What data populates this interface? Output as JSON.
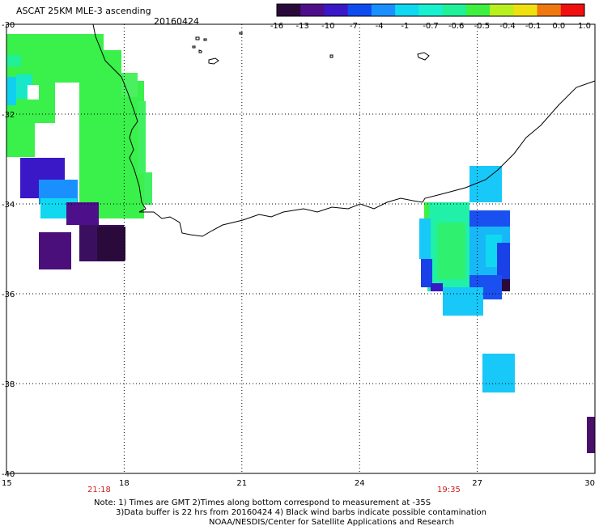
{
  "header": {
    "product": "ASCAT 25KM MLE-3 ascending",
    "date": "20160424"
  },
  "colorbar": {
    "tick_labels": [
      "-16",
      "-13",
      "-10",
      "-7",
      "-4",
      "-1",
      "-0.7",
      "-0.6",
      "-0.5",
      "-0.4",
      "-0.1",
      "0.0",
      "1.0"
    ],
    "colors": [
      "#2a0a3a",
      "#4d0f8a",
      "#3a18c8",
      "#0f4cf0",
      "#1a90ff",
      "#10d8f0",
      "#18f0d0",
      "#20f098",
      "#40f040",
      "#b8f020",
      "#f0e010",
      "#f07810",
      "#f01010"
    ]
  },
  "axes": {
    "y_labels": [
      "-30",
      "-32",
      "-34",
      "-36",
      "-38",
      "-40"
    ],
    "x_labels": [
      "15",
      "18",
      "21",
      "24",
      "27",
      "30"
    ],
    "lon_range": [
      15,
      30
    ],
    "lat_range": [
      -40,
      -30
    ]
  },
  "times": {
    "left": "21:18",
    "right": "19:35"
  },
  "footer": {
    "note_line1": "Note: 1) Times are GMT 2)Times along bottom correspond to measurement at -35S",
    "note_line2": "3)Data buffer is 22 hrs from 20160424 4) Black wind barbs indicate possible contamination",
    "credit": "NOAA/NESDIS/Center for Satellite Applications and Research"
  }
}
